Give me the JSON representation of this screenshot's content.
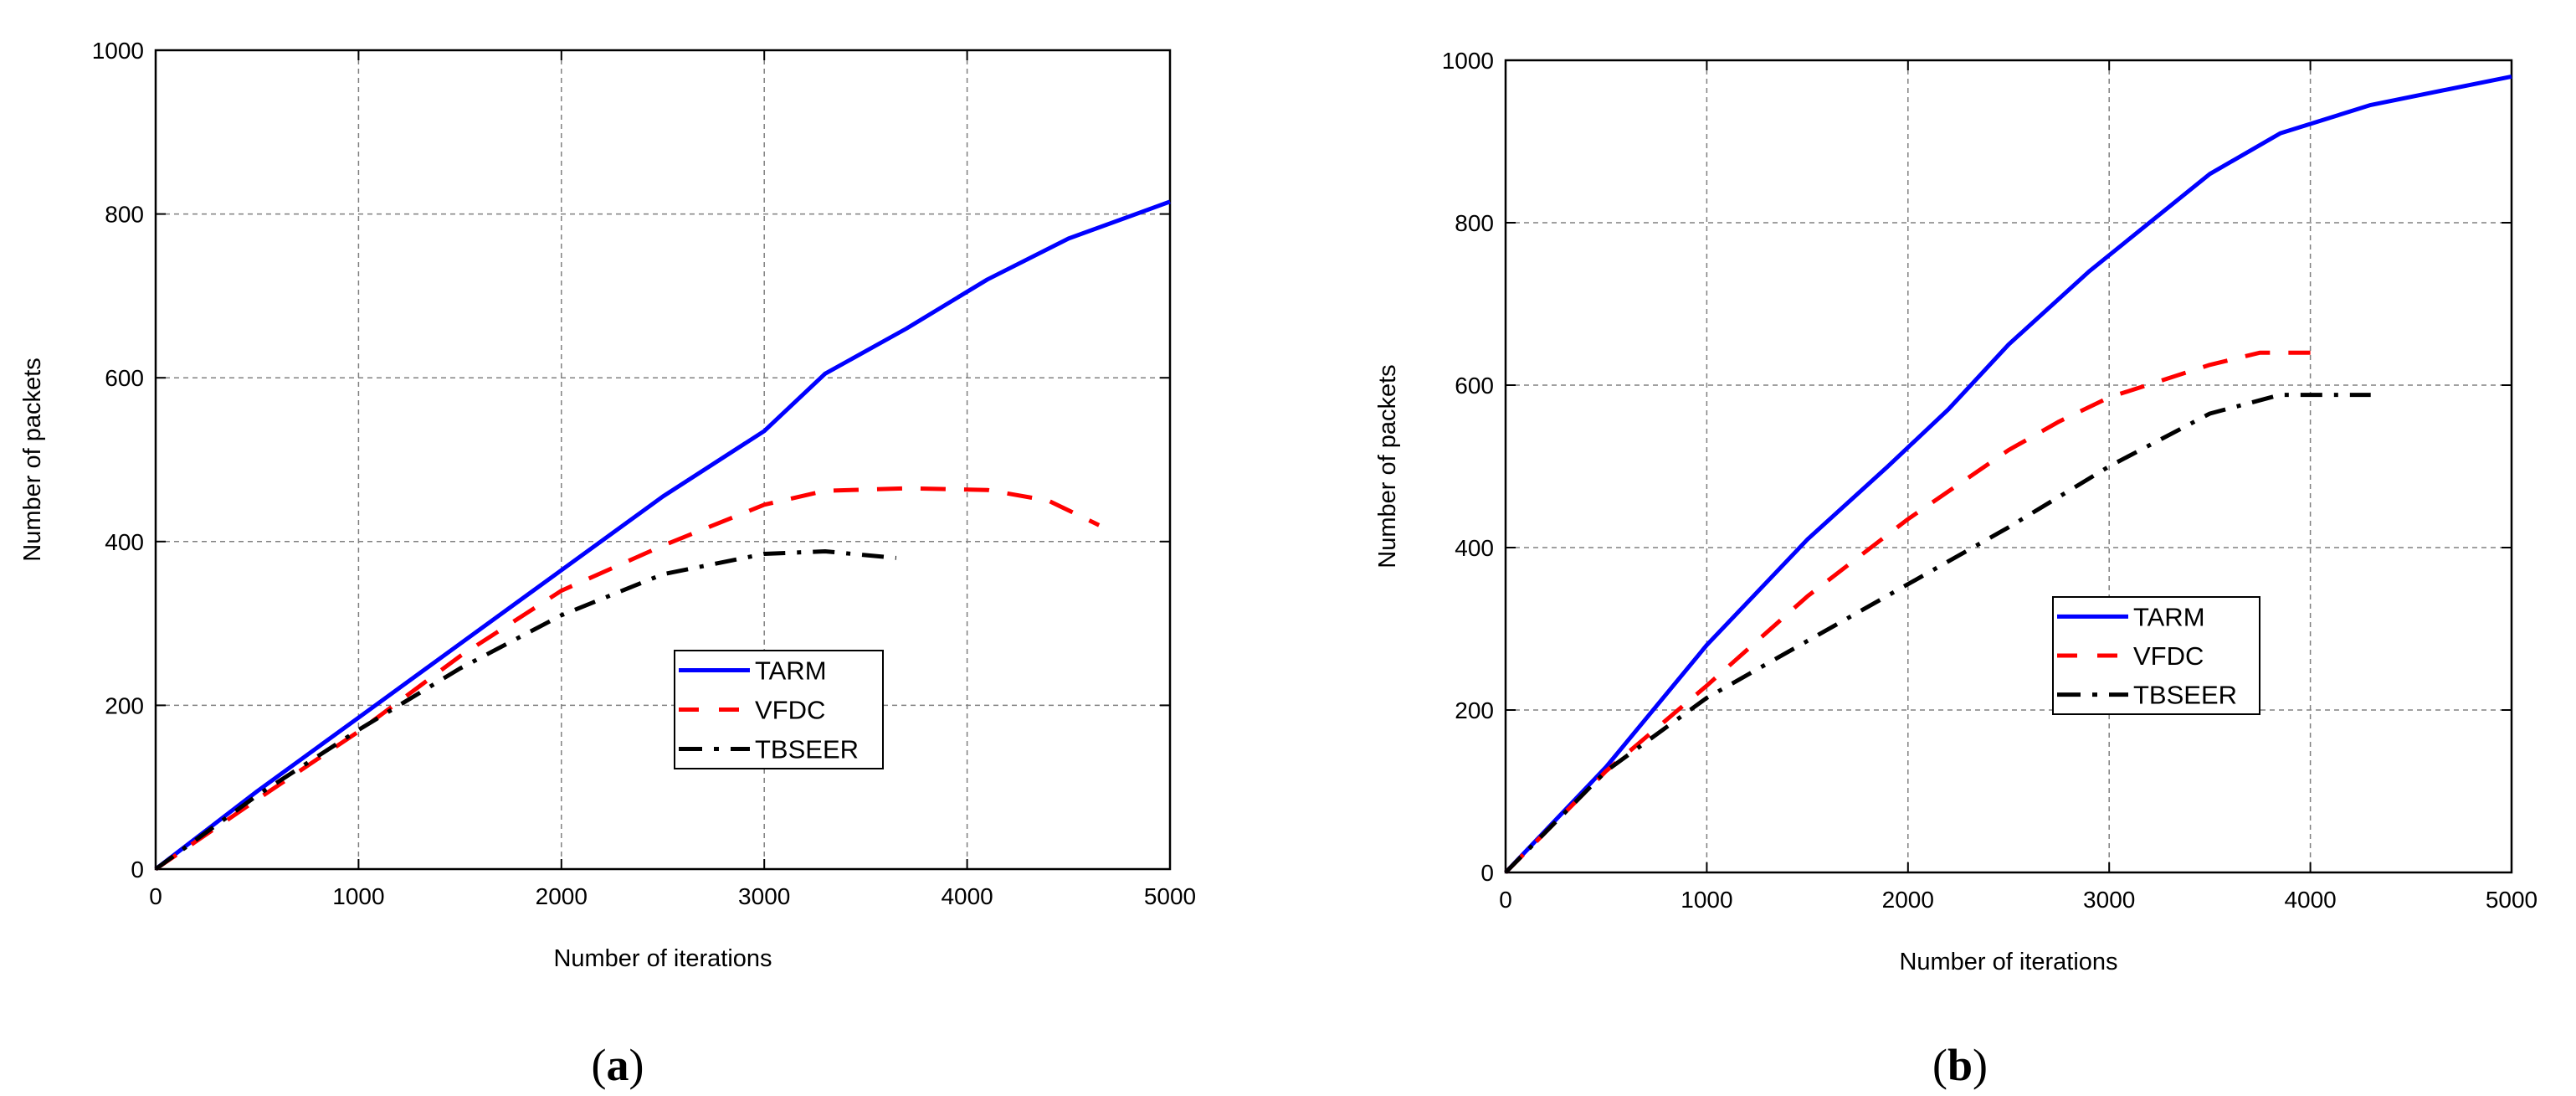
{
  "chart_data": [
    {
      "type": "line",
      "panel": "(a)",
      "caption": "(a)",
      "caption_letter": "a",
      "xlabel": "Number of iterations",
      "ylabel": "Number of packets",
      "xlim": [
        0,
        5000
      ],
      "ylim": [
        0,
        1000
      ],
      "xticks": [
        0,
        1000,
        2000,
        3000,
        4000,
        5000
      ],
      "yticks": [
        0,
        200,
        400,
        600,
        800,
        1000
      ],
      "grid": true,
      "legend_position": "center-right (inside, lower middle)",
      "series": [
        {
          "name": "TARM",
          "color": "#0000ff",
          "style": "solid",
          "x": [
            0,
            500,
            1000,
            1500,
            2000,
            2500,
            3000,
            3300,
            3700,
            4100,
            4500,
            5000
          ],
          "y": [
            0,
            95,
            185,
            275,
            365,
            455,
            535,
            605,
            660,
            720,
            770,
            815
          ]
        },
        {
          "name": "VFDC",
          "color": "#ff0000",
          "style": "dashed",
          "x": [
            0,
            500,
            1000,
            1500,
            2000,
            2500,
            3000,
            3300,
            3700,
            4100,
            4400,
            4650
          ],
          "y": [
            0,
            85,
            168,
            260,
            340,
            395,
            445,
            462,
            465,
            463,
            450,
            420
          ]
        },
        {
          "name": "TBSEER",
          "color": "#000000",
          "style": "dash-dot",
          "x": [
            0,
            500,
            1000,
            1500,
            2000,
            2500,
            3000,
            3300,
            3650
          ],
          "y": [
            0,
            90,
            170,
            245,
            310,
            360,
            385,
            388,
            380
          ]
        }
      ]
    },
    {
      "type": "line",
      "panel": "(b)",
      "caption": "(b)",
      "caption_letter": "b",
      "xlabel": "Number of iterations",
      "ylabel": "Number of packets",
      "xlim": [
        0,
        5000
      ],
      "ylim": [
        0,
        1000
      ],
      "xticks": [
        0,
        1000,
        2000,
        3000,
        4000,
        5000
      ],
      "yticks": [
        0,
        200,
        400,
        600,
        800,
        1000
      ],
      "grid": true,
      "legend_position": "center-right (inside)",
      "series": [
        {
          "name": "TARM",
          "color": "#0000ff",
          "style": "solid",
          "x": [
            0,
            500,
            1000,
            1500,
            1900,
            2200,
            2500,
            2900,
            3500,
            3850,
            4300,
            5000
          ],
          "y": [
            0,
            130,
            280,
            410,
            500,
            570,
            650,
            740,
            860,
            910,
            945,
            980
          ]
        },
        {
          "name": "VFDC",
          "color": "#ff0000",
          "style": "dashed",
          "x": [
            0,
            500,
            1000,
            1500,
            2000,
            2500,
            2750,
            3000,
            3500,
            3750,
            4000
          ],
          "y": [
            0,
            125,
            230,
            340,
            435,
            520,
            555,
            585,
            625,
            640,
            640
          ]
        },
        {
          "name": "TBSEER",
          "color": "#000000",
          "style": "dash-dot",
          "x": [
            0,
            500,
            1000,
            1500,
            2000,
            2500,
            3000,
            3500,
            3850,
            4300
          ],
          "y": [
            0,
            125,
            215,
            285,
            355,
            425,
            500,
            565,
            588,
            588
          ]
        }
      ]
    }
  ]
}
